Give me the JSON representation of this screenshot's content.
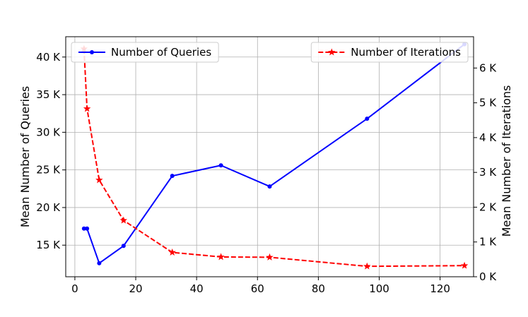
{
  "chart_data": {
    "type": "line",
    "xlabel": "",
    "ylabel_left": "Mean Number of Queries",
    "ylabel_right": "Mean Number of Iterations",
    "xlim": [
      -3,
      131
    ],
    "ylim_left": [
      10800,
      42700
    ],
    "ylim_right": [
      0,
      6900
    ],
    "x_ticks": [
      0,
      20,
      40,
      60,
      80,
      100,
      120
    ],
    "y_ticks_left": [
      {
        "value": 15000,
        "label": "15 K"
      },
      {
        "value": 20000,
        "label": "20 K"
      },
      {
        "value": 25000,
        "label": "25 K"
      },
      {
        "value": 30000,
        "label": "30 K"
      },
      {
        "value": 35000,
        "label": "35 K"
      },
      {
        "value": 40000,
        "label": "40 K"
      }
    ],
    "y_ticks_right": [
      {
        "value": 0,
        "label": "0 K"
      },
      {
        "value": 1000,
        "label": "1 K"
      },
      {
        "value": 2000,
        "label": "2 K"
      },
      {
        "value": 3000,
        "label": "3 K"
      },
      {
        "value": 4000,
        "label": "4 K"
      },
      {
        "value": 5000,
        "label": "5 K"
      },
      {
        "value": 6000,
        "label": "6 K"
      }
    ],
    "grid": true,
    "series": [
      {
        "name": "Number of Queries",
        "axis": "left",
        "color": "#0000ff",
        "style": "solid",
        "marker": "circle",
        "legend_position": "top-left",
        "x": [
          3,
          4,
          8,
          16,
          32,
          48,
          64,
          96,
          128
        ],
        "values": [
          17200,
          17200,
          12600,
          14900,
          24200,
          25600,
          22800,
          31800,
          41700
        ]
      },
      {
        "name": "Number of Iterations",
        "axis": "right",
        "color": "#ff0000",
        "style": "dashed",
        "marker": "star",
        "legend_position": "top-right",
        "x": [
          3,
          4,
          8,
          16,
          32,
          48,
          64,
          96,
          128
        ],
        "values": [
          6550,
          4830,
          2780,
          1620,
          700,
          570,
          560,
          300,
          320
        ]
      }
    ]
  }
}
